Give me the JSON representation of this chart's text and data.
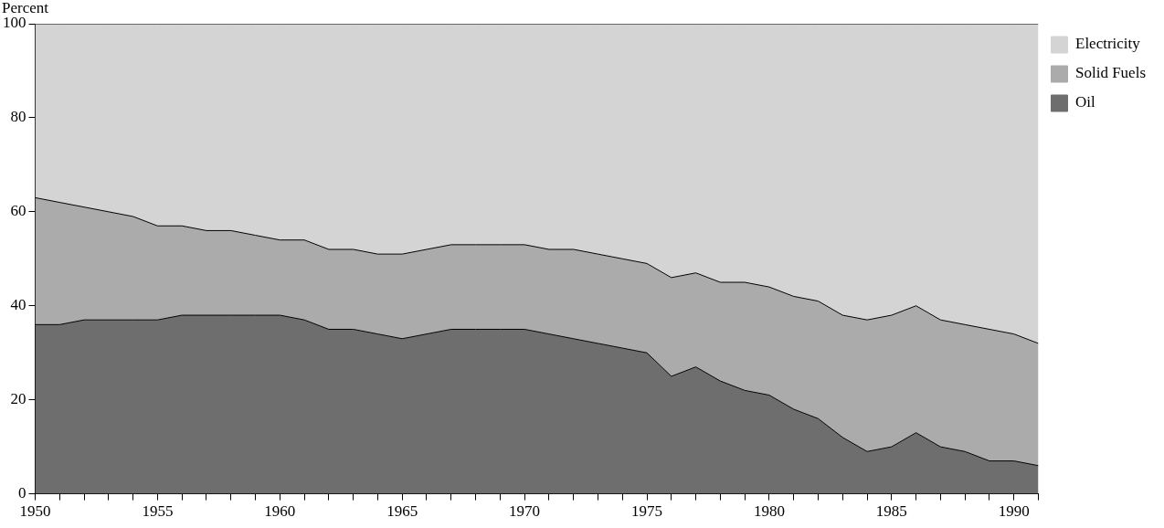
{
  "chart_data": {
    "type": "area",
    "stacked": true,
    "ylabel": "Percent",
    "x": [
      1950,
      1951,
      1952,
      1953,
      1954,
      1955,
      1956,
      1957,
      1958,
      1959,
      1960,
      1961,
      1962,
      1963,
      1964,
      1965,
      1966,
      1967,
      1968,
      1969,
      1970,
      1971,
      1972,
      1973,
      1974,
      1975,
      1976,
      1977,
      1978,
      1979,
      1980,
      1981,
      1982,
      1983,
      1984,
      1985,
      1986,
      1987,
      1988,
      1989,
      1990,
      1991
    ],
    "series": [
      {
        "name": "Oil",
        "color": "#6e6e6e",
        "values": [
          36,
          36,
          37,
          37,
          37,
          37,
          38,
          38,
          38,
          38,
          38,
          37,
          35,
          35,
          34,
          33,
          34,
          35,
          35,
          35,
          35,
          34,
          33,
          32,
          31,
          30,
          25,
          27,
          24,
          22,
          21,
          18,
          16,
          12,
          9,
          10,
          13,
          10,
          9,
          7,
          7,
          6
        ]
      },
      {
        "name": "Solid Fuels",
        "color": "#ababab",
        "values": [
          27,
          26,
          24,
          23,
          22,
          20,
          19,
          18,
          18,
          17,
          16,
          17,
          17,
          17,
          17,
          18,
          18,
          18,
          18,
          18,
          18,
          18,
          19,
          19,
          19,
          19,
          21,
          20,
          21,
          23,
          23,
          24,
          25,
          26,
          28,
          28,
          27,
          27,
          27,
          28,
          27,
          26
        ]
      },
      {
        "name": "Electricity",
        "color": "#d4d4d4",
        "values": [
          37,
          38,
          39,
          40,
          41,
          43,
          43,
          44,
          44,
          45,
          46,
          46,
          48,
          48,
          49,
          49,
          48,
          47,
          47,
          47,
          47,
          48,
          48,
          49,
          50,
          51,
          54,
          53,
          55,
          55,
          56,
          58,
          59,
          62,
          63,
          62,
          60,
          63,
          64,
          65,
          66,
          68
        ]
      }
    ],
    "xlim": [
      1950,
      1991
    ],
    "xticks": [
      1950,
      {
        "value": 1951,
        "label": null
      },
      {
        "value": 1952,
        "label": null
      },
      {
        "value": 1953,
        "label": null
      },
      {
        "value": 1954,
        "label": null
      },
      1955,
      {
        "value": 1956,
        "label": null
      },
      {
        "value": 1957,
        "label": null
      },
      {
        "value": 1958,
        "label": null
      },
      {
        "value": 1959,
        "label": null
      },
      1960,
      {
        "value": 1961,
        "label": null
      },
      {
        "value": 1962,
        "label": null
      },
      {
        "value": 1963,
        "label": null
      },
      {
        "value": 1964,
        "label": null
      },
      1965,
      {
        "value": 1966,
        "label": null
      },
      {
        "value": 1967,
        "label": null
      },
      {
        "value": 1968,
        "label": null
      },
      {
        "value": 1969,
        "label": null
      },
      1970,
      {
        "value": 1971,
        "label": null
      },
      {
        "value": 1972,
        "label": null
      },
      {
        "value": 1973,
        "label": null
      },
      {
        "value": 1974,
        "label": null
      },
      1975,
      {
        "value": 1976,
        "label": null
      },
      {
        "value": 1977,
        "label": null
      },
      {
        "value": 1978,
        "label": null
      },
      {
        "value": 1979,
        "label": null
      },
      1980,
      {
        "value": 1981,
        "label": null
      },
      {
        "value": 1982,
        "label": null
      },
      {
        "value": 1983,
        "label": null
      },
      {
        "value": 1984,
        "label": null
      },
      1985,
      {
        "value": 1986,
        "label": null
      },
      {
        "value": 1987,
        "label": null
      },
      {
        "value": 1988,
        "label": null
      },
      {
        "value": 1989,
        "label": null
      },
      1990,
      {
        "value": 1991,
        "label": null
      }
    ],
    "ylim": [
      0,
      100
    ],
    "yticks": [
      0,
      20,
      40,
      60,
      80,
      100
    ],
    "grid": false,
    "legend": "top right",
    "marker": "none"
  }
}
